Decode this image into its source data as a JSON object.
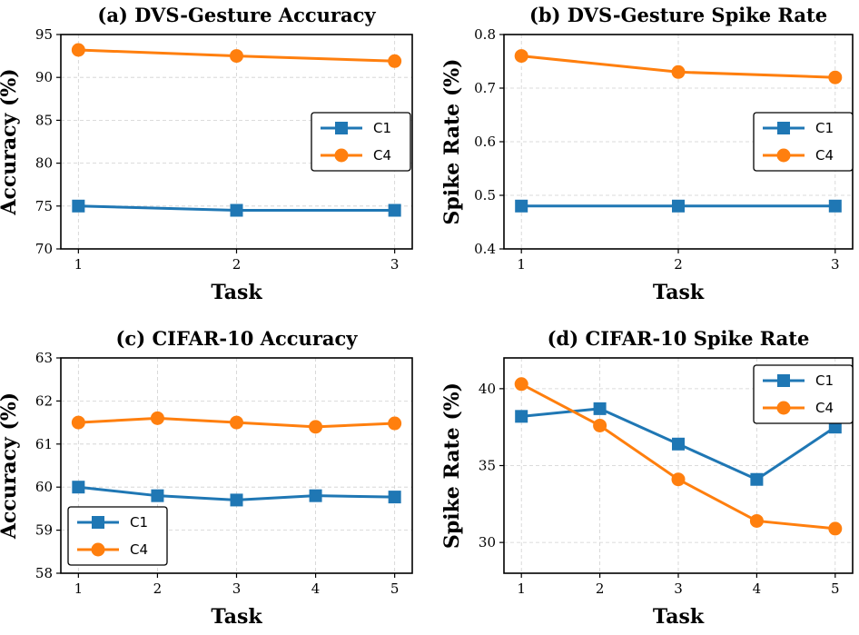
{
  "colors": {
    "C1": "#1f77b4",
    "C4": "#ff7f0e"
  },
  "chart_data": [
    {
      "type": "line",
      "title": "(a) DVS-Gesture Accuracy",
      "xlabel": "Task",
      "ylabel": "Accuracy (%)",
      "x": [
        1,
        2,
        3
      ],
      "ylim": [
        70,
        95
      ],
      "yticks": [
        70,
        75,
        80,
        85,
        90,
        95
      ],
      "ytick_labels": [
        "70",
        "75",
        "80",
        "85",
        "90",
        "95"
      ],
      "grid": true,
      "legend_position": "center-right",
      "series": [
        {
          "name": "C1",
          "marker": "square",
          "values": [
            75.0,
            74.5,
            74.5
          ]
        },
        {
          "name": "C4",
          "marker": "circle",
          "values": [
            93.2,
            92.5,
            91.9
          ]
        }
      ]
    },
    {
      "type": "line",
      "title": "(b) DVS-Gesture Spike Rate",
      "xlabel": "Task",
      "ylabel": "Spike Rate (%)",
      "x": [
        1,
        2,
        3
      ],
      "ylim": [
        0.4,
        0.8
      ],
      "yticks": [
        0.4,
        0.5,
        0.6,
        0.7,
        0.8
      ],
      "ytick_labels": [
        "0.4",
        "0.5",
        "0.6",
        "0.7",
        "0.8"
      ],
      "grid": true,
      "legend_position": "center-right",
      "series": [
        {
          "name": "C1",
          "marker": "square",
          "values": [
            0.48,
            0.48,
            0.48
          ]
        },
        {
          "name": "C4",
          "marker": "circle",
          "values": [
            0.76,
            0.73,
            0.72
          ]
        }
      ]
    },
    {
      "type": "line",
      "title": "(c) CIFAR-10 Accuracy",
      "xlabel": "Task",
      "ylabel": "Accuracy (%)",
      "x": [
        1,
        2,
        3,
        4,
        5
      ],
      "ylim": [
        58,
        63
      ],
      "yticks": [
        58,
        59,
        60,
        61,
        62,
        63
      ],
      "ytick_labels": [
        "58",
        "59",
        "60",
        "61",
        "62",
        "63"
      ],
      "grid": true,
      "legend_position": "lower-left",
      "series": [
        {
          "name": "C1",
          "marker": "square",
          "values": [
            60.0,
            59.8,
            59.7,
            59.8,
            59.77
          ]
        },
        {
          "name": "C4",
          "marker": "circle",
          "values": [
            61.5,
            61.6,
            61.5,
            61.4,
            61.48
          ]
        }
      ]
    },
    {
      "type": "line",
      "title": "(d) CIFAR-10 Spike Rate",
      "xlabel": "Task",
      "ylabel": "Spike Rate (%)",
      "x": [
        1,
        2,
        3,
        4,
        5
      ],
      "ylim": [
        28,
        42
      ],
      "yticks": [
        30,
        35,
        40
      ],
      "ytick_labels": [
        "30",
        "35",
        "40"
      ],
      "grid": true,
      "legend_position": "upper-right",
      "series": [
        {
          "name": "C1",
          "marker": "square",
          "values": [
            38.2,
            38.7,
            36.4,
            34.1,
            37.5
          ]
        },
        {
          "name": "C4",
          "marker": "circle",
          "values": [
            40.3,
            37.6,
            34.1,
            31.4,
            30.9
          ]
        }
      ]
    }
  ]
}
